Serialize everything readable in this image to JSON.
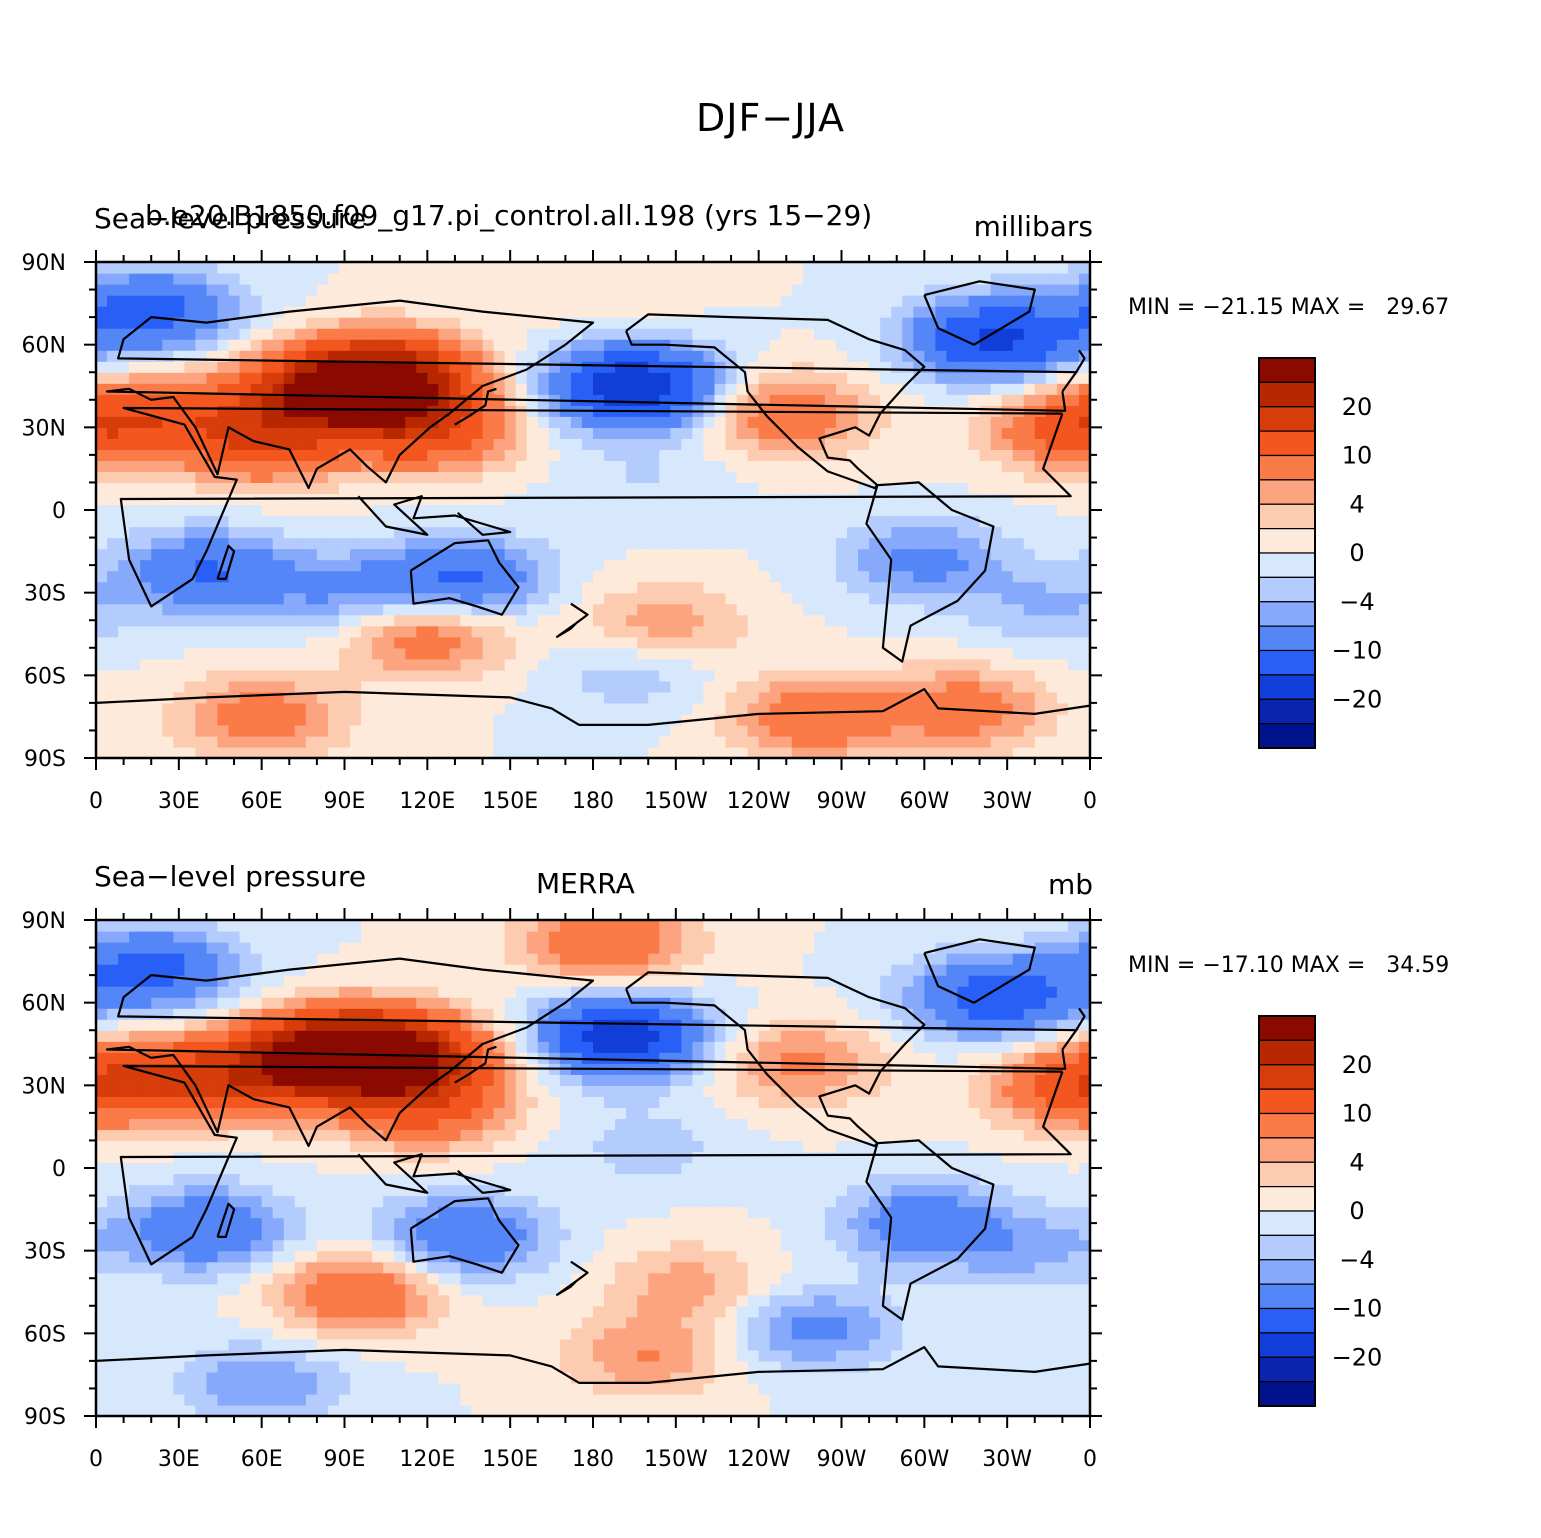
{
  "figure": {
    "title": "DJF−JJA"
  },
  "chart_data": [
    {
      "type": "heatmap",
      "panel_left_title": "Sea−level pressure",
      "panel_center_title": "b.e20.B1850.f09_g17.pi_control.all.198 (yrs 15−29)",
      "panel_right_title": "millibars",
      "x_ticks": [
        "0",
        "30E",
        "60E",
        "90E",
        "120E",
        "150E",
        "180",
        "150W",
        "120W",
        "90W",
        "60W",
        "30W",
        "0"
      ],
      "y_ticks": [
        "90N",
        "60N",
        "30N",
        "0",
        "30S",
        "60S",
        "90S"
      ],
      "xlim": [
        0,
        360
      ],
      "ylim": [
        -90,
        90
      ],
      "stats": "MIN = −21.15 MAX =   29.67",
      "colorbar_labels": [
        "20",
        "10",
        "4",
        "0",
        "−4",
        "−10",
        "−20"
      ],
      "colorbar_colors": [
        "#8b0a00",
        "#b82800",
        "#d63d0a",
        "#f3561f",
        "#fb7b48",
        "#fca37f",
        "#fdcbb0",
        "#feeadb",
        "#d7e8fd",
        "#b3ccfd",
        "#86a9fb",
        "#5486f8",
        "#2860f7",
        "#113ed8",
        "#0b24b0",
        "#00138c"
      ],
      "features": [
        {
          "lon": 105,
          "lat": 48,
          "value": 26
        },
        {
          "lon": 80,
          "lat": 42,
          "value": 18
        },
        {
          "lon": 120,
          "lat": 30,
          "value": 14
        },
        {
          "lon": 60,
          "lat": 25,
          "value": 12
        },
        {
          "lon": 25,
          "lat": 35,
          "value": 8
        },
        {
          "lon": 40,
          "lat": -22,
          "value": -10
        },
        {
          "lon": 133,
          "lat": -25,
          "value": -11
        },
        {
          "lon": 300,
          "lat": -18,
          "value": -7
        },
        {
          "lon": 195,
          "lat": 45,
          "value": -20
        },
        {
          "lon": 250,
          "lat": 35,
          "value": 9
        },
        {
          "lon": 325,
          "lat": 62,
          "value": -16
        },
        {
          "lon": 20,
          "lat": 72,
          "value": -12
        },
        {
          "lon": 355,
          "lat": 30,
          "value": 12
        },
        {
          "lon": 120,
          "lat": -45,
          "value": 9
        },
        {
          "lon": 205,
          "lat": -42,
          "value": 6
        },
        {
          "lon": 195,
          "lat": -58,
          "value": -4
        },
        {
          "lon": 260,
          "lat": -75,
          "value": 9
        },
        {
          "lon": 60,
          "lat": -75,
          "value": 8
        },
        {
          "lon": 315,
          "lat": -72,
          "value": 8
        },
        {
          "lon": 185,
          "lat": 80,
          "value": 2
        },
        {
          "lon": 200,
          "lat": 10,
          "value": -2
        },
        {
          "lon": 90,
          "lat": -30,
          "value": -6
        },
        {
          "lon": 345,
          "lat": -35,
          "value": -4
        }
      ]
    },
    {
      "type": "heatmap",
      "panel_left_title": "Sea−level pressure",
      "panel_center_title": "MERRA",
      "panel_right_title": "mb",
      "x_ticks": [
        "0",
        "30E",
        "60E",
        "90E",
        "120E",
        "150E",
        "180",
        "150W",
        "120W",
        "90W",
        "60W",
        "30W",
        "0"
      ],
      "y_ticks": [
        "90N",
        "60N",
        "30N",
        "0",
        "30S",
        "60S",
        "90S"
      ],
      "xlim": [
        0,
        360
      ],
      "ylim": [
        -90,
        90
      ],
      "stats": "MIN = −17.10 MAX =   34.59",
      "colorbar_labels": [
        "20",
        "10",
        "4",
        "0",
        "−4",
        "−10",
        "−20"
      ],
      "colorbar_colors": [
        "#8b0a00",
        "#b82800",
        "#d63d0a",
        "#f3561f",
        "#fb7b48",
        "#fca37f",
        "#fdcbb0",
        "#feeadb",
        "#d7e8fd",
        "#b3ccfd",
        "#86a9fb",
        "#5486f8",
        "#2860f7",
        "#113ed8",
        "#0b24b0",
        "#00138c"
      ],
      "features": [
        {
          "lon": 90,
          "lat": 42,
          "value": 28
        },
        {
          "lon": 115,
          "lat": 40,
          "value": 18
        },
        {
          "lon": 60,
          "lat": 35,
          "value": 14
        },
        {
          "lon": 120,
          "lat": 22,
          "value": 10
        },
        {
          "lon": 25,
          "lat": 33,
          "value": 9
        },
        {
          "lon": 185,
          "lat": 82,
          "value": 10
        },
        {
          "lon": 40,
          "lat": -22,
          "value": -10
        },
        {
          "lon": 133,
          "lat": -25,
          "value": -10
        },
        {
          "lon": 300,
          "lat": -20,
          "value": -9
        },
        {
          "lon": 190,
          "lat": 48,
          "value": -18
        },
        {
          "lon": 255,
          "lat": 38,
          "value": 7
        },
        {
          "lon": 325,
          "lat": 62,
          "value": -13
        },
        {
          "lon": 20,
          "lat": 72,
          "value": -12
        },
        {
          "lon": 355,
          "lat": 30,
          "value": 12
        },
        {
          "lon": 95,
          "lat": -45,
          "value": 10
        },
        {
          "lon": 215,
          "lat": -42,
          "value": 5
        },
        {
          "lon": 260,
          "lat": -58,
          "value": -7
        },
        {
          "lon": 60,
          "lat": -78,
          "value": -6
        },
        {
          "lon": 200,
          "lat": -68,
          "value": 6
        },
        {
          "lon": 200,
          "lat": 8,
          "value": -3
        },
        {
          "lon": 340,
          "lat": -30,
          "value": -4
        }
      ]
    }
  ]
}
